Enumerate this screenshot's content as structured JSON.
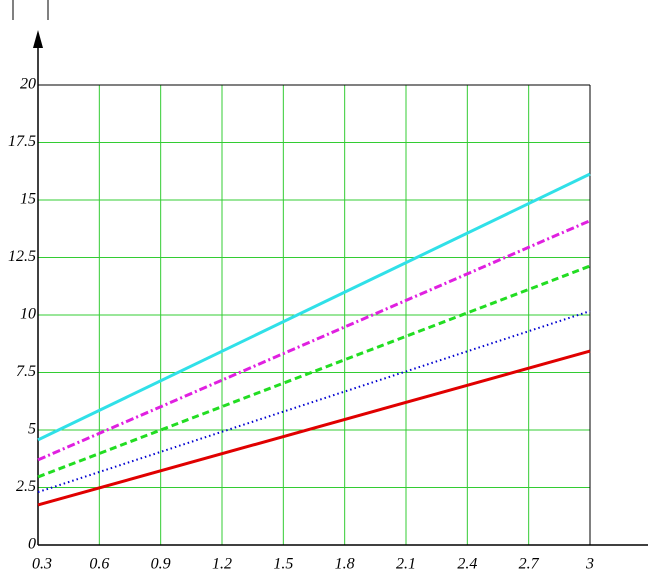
{
  "chart_data": {
    "type": "line",
    "x": [
      0.3,
      3
    ],
    "series": [
      {
        "color": "#e00000",
        "style": "solid",
        "values": [
          1.74,
          8.43
        ]
      },
      {
        "color": "#0000d0",
        "style": "dotted",
        "values": [
          2.3,
          10.17
        ]
      },
      {
        "color": "#22dd22",
        "style": "dashed",
        "values": [
          2.96,
          12.13
        ]
      },
      {
        "color": "#e020e0",
        "style": "dashdot",
        "values": [
          3.7,
          14.1
        ]
      },
      {
        "color": "#30e0e8",
        "style": "solid",
        "values": [
          4.57,
          16.13
        ]
      }
    ],
    "xlim": [
      0.3,
      3
    ],
    "xticks": [
      0.3,
      0.6,
      0.9,
      1.2,
      1.5,
      1.8,
      2.1,
      2.4,
      2.7,
      3
    ],
    "ylim": [
      0,
      20
    ],
    "yticks": [
      0,
      2.5,
      5,
      7.5,
      10,
      12.5,
      15,
      17.5,
      20
    ],
    "grid": true,
    "grid_color": "#33cc33"
  }
}
